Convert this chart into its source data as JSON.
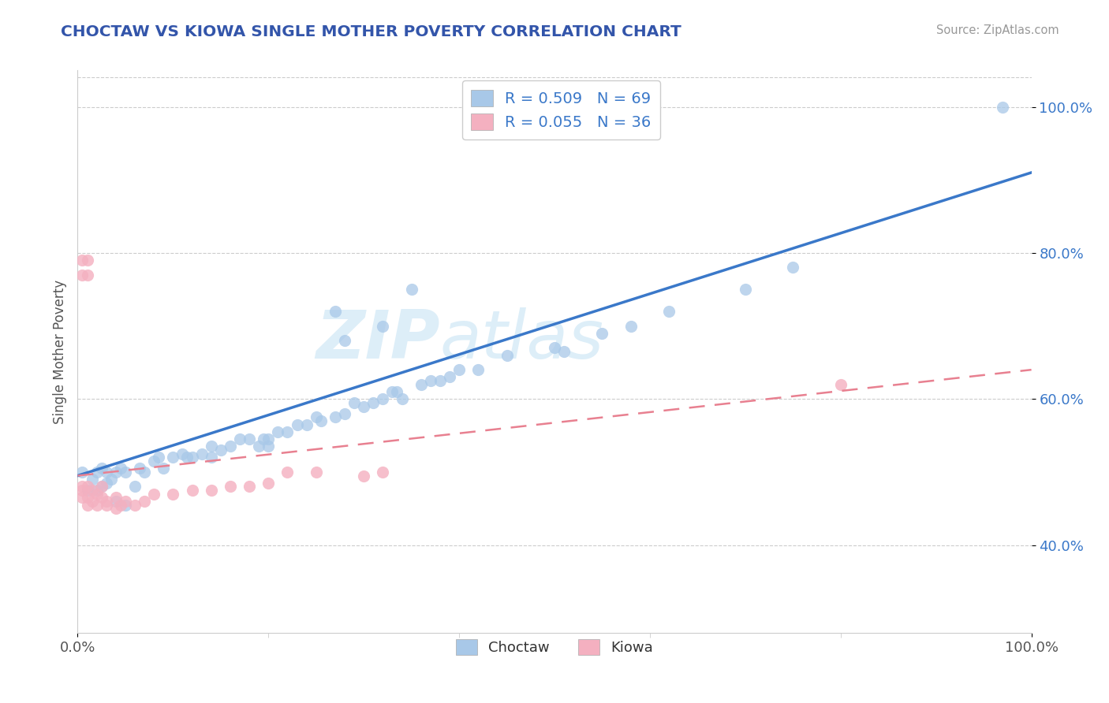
{
  "title": "CHOCTAW VS KIOWA SINGLE MOTHER POVERTY CORRELATION CHART",
  "source": "Source: ZipAtlas.com",
  "ylabel": "Single Mother Poverty",
  "choctaw_color": "#a8c8e8",
  "kiowa_color": "#f4b0c0",
  "choctaw_line_color": "#3a78c9",
  "kiowa_line_color": "#e88090",
  "background_color": "#ffffff",
  "watermark_zip": "ZIP",
  "watermark_atlas": "atlas",
  "title_color": "#3355aa",
  "source_color": "#999999",
  "ylabel_color": "#555555",
  "tick_color": "#555555",
  "ytick_color": "#3a78c9",
  "grid_color": "#cccccc",
  "legend_label_color": "#3a78c9",
  "choctaw_scatter": [
    [
      0.005,
      0.5
    ],
    [
      0.01,
      0.475
    ],
    [
      0.015,
      0.49
    ],
    [
      0.02,
      0.475
    ],
    [
      0.02,
      0.5
    ],
    [
      0.025,
      0.48
    ],
    [
      0.025,
      0.505
    ],
    [
      0.03,
      0.485
    ],
    [
      0.03,
      0.5
    ],
    [
      0.035,
      0.49
    ],
    [
      0.04,
      0.46
    ],
    [
      0.04,
      0.5
    ],
    [
      0.045,
      0.505
    ],
    [
      0.05,
      0.455
    ],
    [
      0.05,
      0.5
    ],
    [
      0.06,
      0.48
    ],
    [
      0.065,
      0.505
    ],
    [
      0.07,
      0.5
    ],
    [
      0.08,
      0.515
    ],
    [
      0.085,
      0.52
    ],
    [
      0.09,
      0.505
    ],
    [
      0.1,
      0.52
    ],
    [
      0.11,
      0.525
    ],
    [
      0.115,
      0.52
    ],
    [
      0.12,
      0.52
    ],
    [
      0.13,
      0.525
    ],
    [
      0.14,
      0.52
    ],
    [
      0.14,
      0.535
    ],
    [
      0.15,
      0.53
    ],
    [
      0.16,
      0.535
    ],
    [
      0.17,
      0.545
    ],
    [
      0.18,
      0.545
    ],
    [
      0.19,
      0.535
    ],
    [
      0.195,
      0.545
    ],
    [
      0.2,
      0.545
    ],
    [
      0.2,
      0.535
    ],
    [
      0.21,
      0.555
    ],
    [
      0.22,
      0.555
    ],
    [
      0.23,
      0.565
    ],
    [
      0.24,
      0.565
    ],
    [
      0.25,
      0.575
    ],
    [
      0.255,
      0.57
    ],
    [
      0.27,
      0.575
    ],
    [
      0.28,
      0.58
    ],
    [
      0.29,
      0.595
    ],
    [
      0.3,
      0.59
    ],
    [
      0.31,
      0.595
    ],
    [
      0.32,
      0.6
    ],
    [
      0.33,
      0.61
    ],
    [
      0.335,
      0.61
    ],
    [
      0.34,
      0.6
    ],
    [
      0.36,
      0.62
    ],
    [
      0.37,
      0.625
    ],
    [
      0.38,
      0.625
    ],
    [
      0.39,
      0.63
    ],
    [
      0.4,
      0.64
    ],
    [
      0.42,
      0.64
    ],
    [
      0.45,
      0.66
    ],
    [
      0.5,
      0.67
    ],
    [
      0.51,
      0.665
    ],
    [
      0.55,
      0.69
    ],
    [
      0.58,
      0.7
    ],
    [
      0.62,
      0.72
    ],
    [
      0.7,
      0.75
    ],
    [
      0.75,
      0.78
    ],
    [
      0.97,
      1.0
    ],
    [
      0.27,
      0.72
    ],
    [
      0.28,
      0.68
    ],
    [
      0.32,
      0.7
    ],
    [
      0.35,
      0.75
    ]
  ],
  "kiowa_scatter": [
    [
      0.005,
      0.475
    ],
    [
      0.005,
      0.48
    ],
    [
      0.005,
      0.465
    ],
    [
      0.01,
      0.48
    ],
    [
      0.01,
      0.465
    ],
    [
      0.01,
      0.455
    ],
    [
      0.015,
      0.475
    ],
    [
      0.015,
      0.46
    ],
    [
      0.02,
      0.47
    ],
    [
      0.02,
      0.455
    ],
    [
      0.025,
      0.465
    ],
    [
      0.025,
      0.48
    ],
    [
      0.03,
      0.46
    ],
    [
      0.03,
      0.455
    ],
    [
      0.04,
      0.465
    ],
    [
      0.04,
      0.45
    ],
    [
      0.045,
      0.455
    ],
    [
      0.05,
      0.46
    ],
    [
      0.06,
      0.455
    ],
    [
      0.07,
      0.46
    ],
    [
      0.08,
      0.47
    ],
    [
      0.1,
      0.47
    ],
    [
      0.12,
      0.475
    ],
    [
      0.14,
      0.475
    ],
    [
      0.16,
      0.48
    ],
    [
      0.18,
      0.48
    ],
    [
      0.2,
      0.485
    ],
    [
      0.005,
      0.79
    ],
    [
      0.01,
      0.79
    ],
    [
      0.005,
      0.77
    ],
    [
      0.01,
      0.77
    ],
    [
      0.22,
      0.5
    ],
    [
      0.25,
      0.5
    ],
    [
      0.3,
      0.495
    ],
    [
      0.32,
      0.5
    ],
    [
      0.8,
      0.62
    ]
  ],
  "blue_line_x0": 0.0,
  "blue_line_y0": 0.495,
  "blue_line_x1": 1.0,
  "blue_line_y1": 0.91,
  "pink_line_x0": 0.0,
  "pink_line_y0": 0.495,
  "pink_line_x1": 1.0,
  "pink_line_y1": 0.64,
  "ylim_min": 0.28,
  "ylim_max": 1.05,
  "xlim_min": 0.0,
  "xlim_max": 1.0,
  "yticks": [
    0.4,
    0.6,
    0.8,
    1.0
  ]
}
